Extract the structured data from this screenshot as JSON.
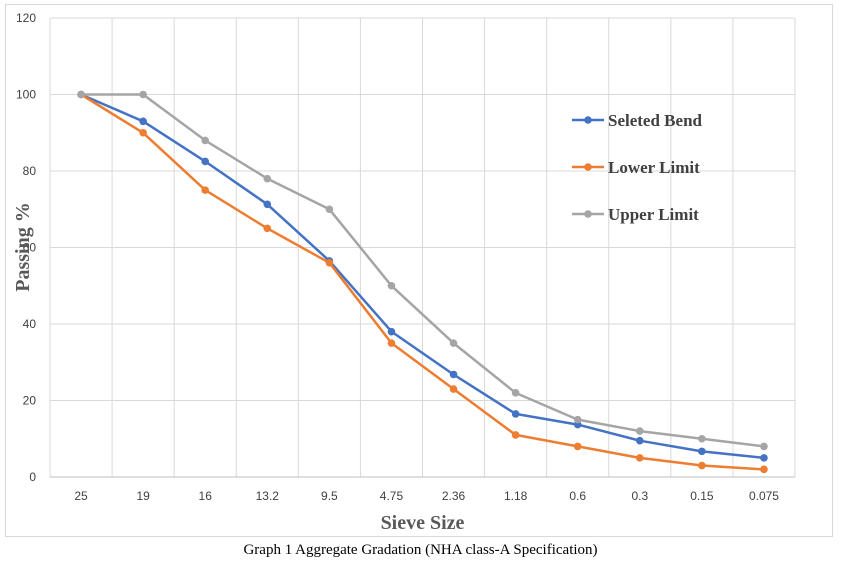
{
  "chart_data": {
    "type": "line",
    "xlabel": "Sieve Size",
    "ylabel": "Passing %",
    "categories": [
      "25",
      "19",
      "16",
      "13.2",
      "9.5",
      "4.75",
      "2.36",
      "1.18",
      "0.6",
      "0.3",
      "0.15",
      "0.075"
    ],
    "ylim": [
      0,
      120
    ],
    "yticks": [
      0,
      20,
      40,
      60,
      80,
      100,
      120
    ],
    "grid": true,
    "legend_position": "right",
    "series": [
      {
        "name": "Seleted Bend",
        "color": "#4472c4",
        "values": [
          100,
          93,
          82.5,
          71.3,
          56.5,
          38,
          26.8,
          16.5,
          13.7,
          9.5,
          6.7,
          5
        ]
      },
      {
        "name": "Lower Limit",
        "color": "#ed7d31",
        "values": [
          100,
          90,
          75,
          65,
          56,
          35,
          23,
          11,
          8,
          5,
          3,
          2
        ]
      },
      {
        "name": "Upper Limit",
        "color": "#a5a5a5",
        "values": [
          100,
          100,
          88,
          78,
          70,
          50,
          35,
          22,
          15,
          12,
          10,
          8
        ]
      }
    ]
  },
  "caption": "Graph 1 Aggregate Gradation (NHA class-A Specification)"
}
